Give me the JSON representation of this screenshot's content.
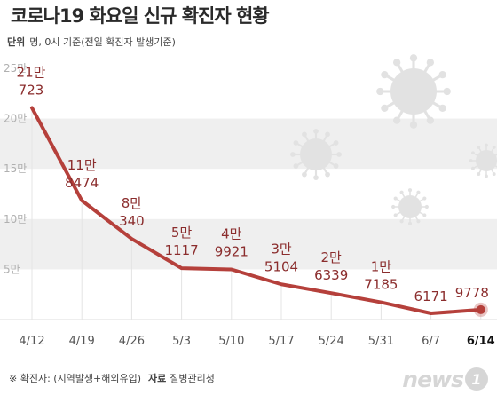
{
  "header": {
    "title": "코로나19 화요일 신규 확진자 현황",
    "unit_label": "단위",
    "unit_text": "명, 0시 기준(전일 확진자 발생기준)"
  },
  "footer": {
    "note": "※ 확진자: (지역발생+해외유입)",
    "source_label": "자료",
    "source": "질병관리청"
  },
  "logo": {
    "text": "news",
    "badge": "1"
  },
  "colors": {
    "line": "#b5403b",
    "label": "#8b2d2d",
    "band": "#efefef",
    "virus": "#e2e2e2",
    "grid_text": "#b0b0b0"
  },
  "icons": [
    "virus-icon-large",
    "virus-icon-medium",
    "virus-icon-small",
    "virus-icon-right"
  ],
  "chart_data": {
    "type": "line",
    "x": [
      "4/12",
      "4/19",
      "4/26",
      "5/3",
      "5/10",
      "5/17",
      "5/24",
      "5/31",
      "6/7",
      "6/14"
    ],
    "y": [
      210723,
      118474,
      80340,
      51117,
      49921,
      35104,
      26339,
      17185,
      6171,
      9778
    ],
    "point_labels": [
      [
        "21만",
        "723"
      ],
      [
        "11만",
        "8474"
      ],
      [
        "8만",
        "340"
      ],
      [
        "5만",
        "1117"
      ],
      [
        "4만",
        "9921"
      ],
      [
        "3만",
        "5104"
      ],
      [
        "2만",
        "6339"
      ],
      [
        "1만",
        "7185"
      ],
      [
        "",
        "6171"
      ],
      [
        "",
        "9778"
      ]
    ],
    "yticks": [
      {
        "value": 50000,
        "label": "5만"
      },
      {
        "value": 100000,
        "label": "10만"
      },
      {
        "value": 150000,
        "label": "15만"
      },
      {
        "value": 200000,
        "label": "20만"
      },
      {
        "value": 250000,
        "label": "25만"
      }
    ],
    "ylim": [
      0,
      250000
    ],
    "highlight_last": true
  }
}
